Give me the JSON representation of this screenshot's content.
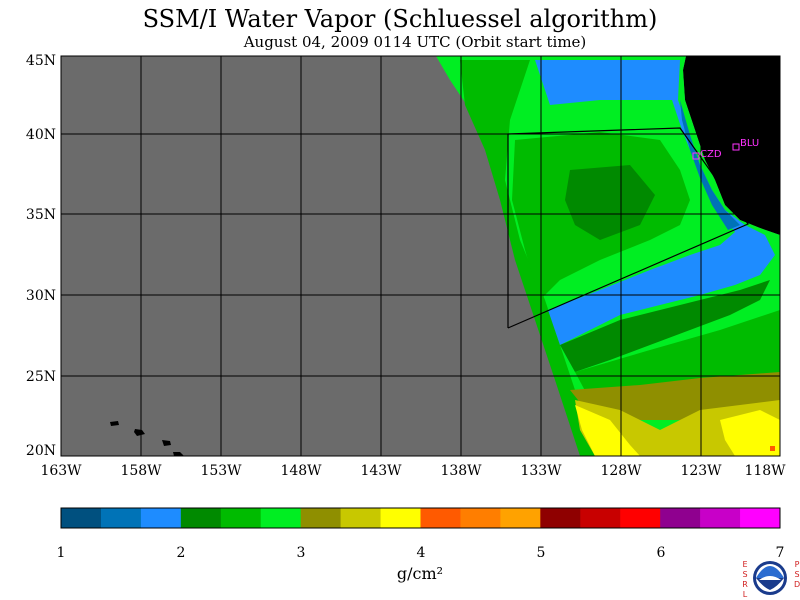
{
  "title": "SSM/I Water Vapor (Schluessel algorithm)",
  "subtitle": "August 04, 2009  0114 UTC  (Orbit start time)",
  "map": {
    "lon_range": [
      -163,
      -118
    ],
    "lat_range": [
      20,
      45
    ],
    "lat_labels": [
      "45N",
      "40N",
      "35N",
      "30N",
      "25N",
      "20N"
    ],
    "lon_labels": [
      "163W",
      "158W",
      "153W",
      "148W",
      "143W",
      "138W",
      "133W",
      "128W",
      "123W",
      "118W"
    ],
    "no_data_color": "#6b6b6b",
    "land_color": "#000000",
    "stations": [
      {
        "label": "CZD",
        "lon": -122.9,
        "lat": 38.6
      },
      {
        "label": "BLU",
        "lon": -120.7,
        "lat": 39.3
      }
    ]
  },
  "colorbar": {
    "ticks": [
      "1",
      "2",
      "3",
      "4",
      "5",
      "6",
      "7"
    ],
    "units": "g/cm²",
    "colors": [
      "#00507f",
      "#0073b7",
      "#1e8cff",
      "#008a00",
      "#00bb00",
      "#00ee22",
      "#8f8f00",
      "#c8c800",
      "#ffff00",
      "#ff5a00",
      "#ff7e00",
      "#ffa200",
      "#8f0000",
      "#c80000",
      "#ff0000",
      "#8f008f",
      "#c800c8",
      "#ff00ff"
    ]
  },
  "logo": {
    "left": "ESRL",
    "right": "PSD",
    "name": "NOAA"
  }
}
